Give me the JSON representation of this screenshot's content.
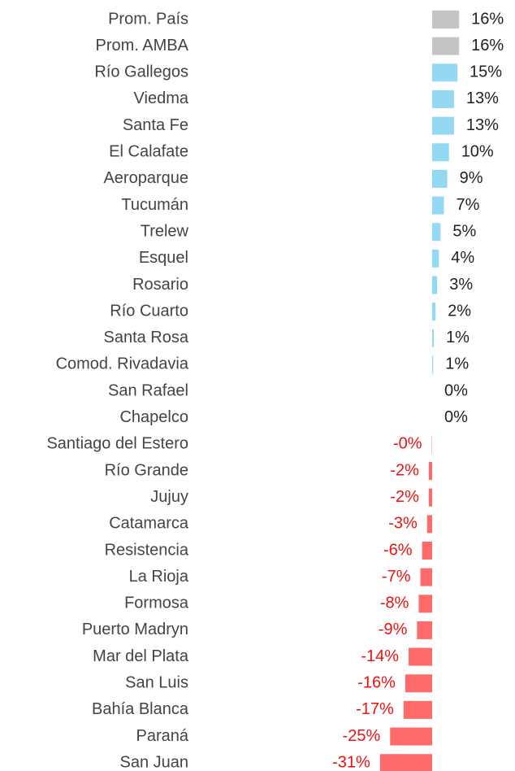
{
  "chart_data": {
    "type": "bar",
    "orientation": "horizontal",
    "categories": [
      "Prom. País",
      "Prom. AMBA",
      "Río Gallegos",
      "Viedma",
      "Santa Fe",
      "El Calafate",
      "Aeroparque",
      "Tucumán",
      "Trelew",
      "Esquel",
      "Rosario",
      "Río Cuarto",
      "Santa Rosa",
      "Comod. Rivadavia",
      "San Rafael",
      "Chapelco",
      "Santiago del Estero",
      "Río Grande",
      "Jujuy",
      "Catamarca",
      "Resistencia",
      "La Rioja",
      "Formosa",
      "Puerto Madryn",
      "Mar del Plata",
      "San Luis",
      "Bahía Blanca",
      "Paraná",
      "San Juan"
    ],
    "values": [
      16,
      16,
      15,
      13,
      13,
      10,
      9,
      7,
      5,
      4,
      3,
      2,
      1,
      0.6,
      0,
      0,
      -0.2,
      -2,
      -2,
      -3,
      -6,
      -7,
      -8,
      -9,
      -14,
      -16,
      -17,
      -25,
      -31
    ],
    "value_labels": [
      "16%",
      "16%",
      "15%",
      "13%",
      "13%",
      "10%",
      "9%",
      "7%",
      "5%",
      "4%",
      "3%",
      "2%",
      "1%",
      "1%",
      "0%",
      "0%",
      "-0%",
      "-2%",
      "-2%",
      "-3%",
      "-6%",
      "-7%",
      "-8%",
      "-9%",
      "-14%",
      "-16%",
      "-17%",
      "-25%",
      "-31%"
    ],
    "colors": [
      "#c4c4c4",
      "#c4c4c4",
      "#93d9f3",
      "#93d9f3",
      "#93d9f3",
      "#93d9f3",
      "#93d9f3",
      "#93d9f3",
      "#93d9f3",
      "#93d9f3",
      "#93d9f3",
      "#93d9f3",
      "#93d9f3",
      "#93d9f3",
      "#93d9f3",
      "#93d9f3",
      "#ff6b6b",
      "#ff6b6b",
      "#ff6b6b",
      "#ff6b6b",
      "#ff6b6b",
      "#ff6b6b",
      "#ff6b6b",
      "#ff6b6b",
      "#ff6b6b",
      "#ff6b6b",
      "#ff6b6b",
      "#ff6b6b",
      "#ff6b6b"
    ],
    "label_color": "#222222",
    "negative_label_color": "#ee1111"
  }
}
